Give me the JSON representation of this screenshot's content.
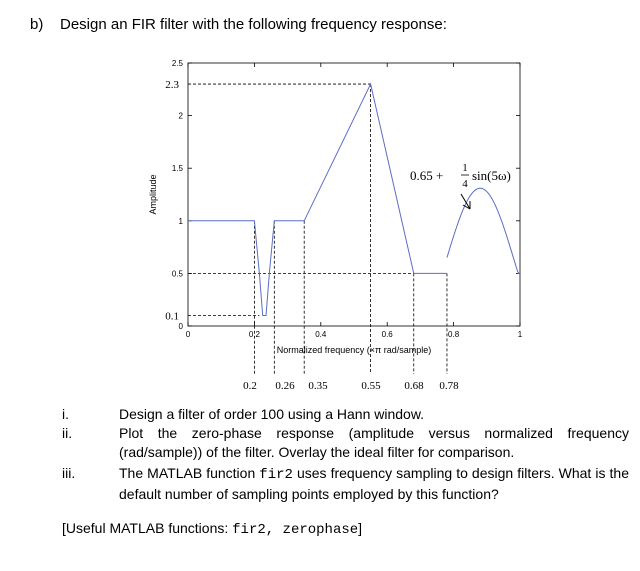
{
  "heading": {
    "label": "b)",
    "text": "Design an FIR filter with the following frequency response:"
  },
  "chart_data": {
    "type": "line",
    "ylabel": "Amplitude",
    "xlabel": "Normalized frequency (×π rad/sample)",
    "xlim": [
      0,
      1
    ],
    "ylim": [
      0,
      2.5
    ],
    "x_ticks": [
      "0",
      "0.2",
      "0.4",
      "0.6",
      "0.8",
      "1"
    ],
    "y_ticks": [
      "0",
      "0.5",
      "1",
      "1.5",
      "2",
      "2.5"
    ],
    "y_ticks_values": [
      0,
      0.5,
      1,
      1.5,
      2,
      2.5
    ],
    "extra_y_labels": [
      "2.3",
      "0.1"
    ],
    "extra_x_labels": [
      "0.2",
      "0.26",
      "0.35",
      "0.55",
      "0.68",
      "0.78"
    ],
    "annotation": {
      "prefix": "0.65 + ",
      "numerator": "1",
      "denominator": "4",
      "suffix": "sin(5ω)"
    },
    "series": [
      {
        "x": [
          0,
          0.2,
          0.215,
          0.225,
          0.235,
          0.245,
          0.26,
          0.35,
          0.55,
          0.68,
          0.78
        ],
        "y": [
          1,
          1,
          0.5,
          0.1,
          0.1,
          0.5,
          1,
          1,
          2.3,
          0.5,
          0.5
        ]
      }
    ],
    "sine": {
      "x_start": 0.78,
      "x_end": 1.0,
      "offset": 0.65,
      "amp": 0.25,
      "freq": 5
    }
  },
  "questions": [
    {
      "num": "i.",
      "text": "Design a filter of order 100 using a Hann window."
    },
    {
      "num": "ii.",
      "text": "Plot the zero-phase response (amplitude versus normalized frequency (rad/sample)) of the filter. Overlay the ideal filter for comparison."
    },
    {
      "num": "iii.",
      "text_pre": "The MATLAB function ",
      "code": "fir2",
      "text_post": " uses frequency sampling to design filters. What is the default number of sampling points employed by this function?"
    }
  ],
  "useful": {
    "prefix": "[Useful MATLAB functions: ",
    "code": "fir2, zerophase",
    "suffix": "]"
  }
}
